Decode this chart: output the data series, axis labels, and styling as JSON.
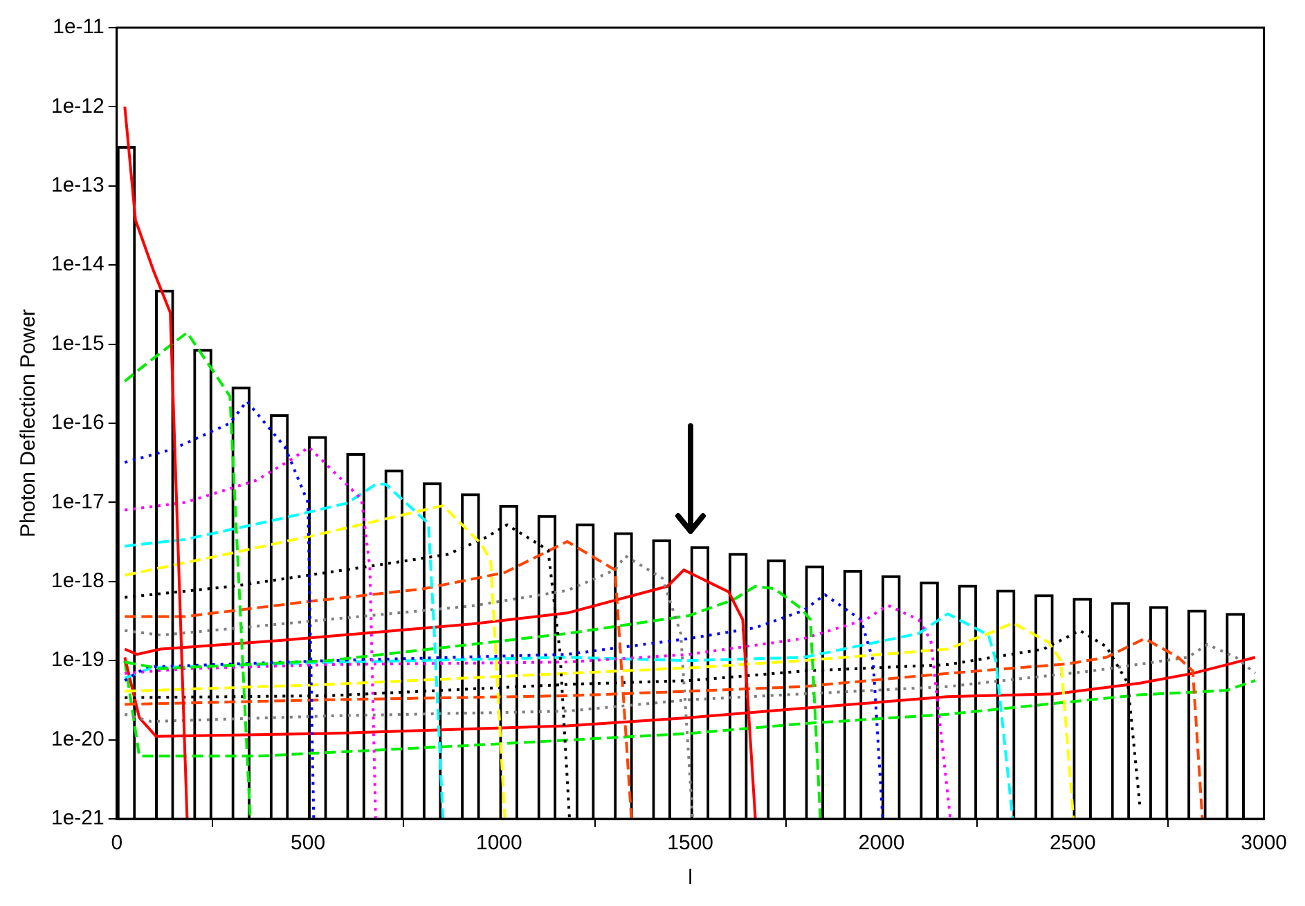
{
  "chart_data": {
    "type": "line",
    "ylabel": "Photon Deflection Power",
    "xlabel": "l",
    "log": "y",
    "grid": false,
    "legend": false,
    "marker": "none",
    "xlim": [
      0,
      3000
    ],
    "xticks": [
      0,
      500,
      1000,
      1500,
      2000,
      2500,
      3000
    ],
    "ylim": [
      1e-21,
      1e-11
    ],
    "yticks": [
      {
        "value": 1e-21,
        "label": "1e-21"
      },
      {
        "value": 1e-20,
        "label": "1e-20"
      },
      {
        "value": 1e-19,
        "label": "1e-19"
      },
      {
        "value": 1e-18,
        "label": "1e-18"
      },
      {
        "value": 1e-17,
        "label": "1e-17"
      },
      {
        "value": 1e-16,
        "label": "1e-16"
      },
      {
        "value": 1e-15,
        "label": "1e-15"
      },
      {
        "value": 1e-14,
        "label": "1e-14"
      },
      {
        "value": 1e-13,
        "label": "1e-13"
      },
      {
        "value": 1e-12,
        "label": "1e-12"
      },
      {
        "value": 1e-11,
        "label": "1e-11"
      }
    ],
    "series": [
      {
        "type": "bar",
        "color": "#000000",
        "x": [
          25,
          125,
          225,
          325,
          425,
          525,
          625,
          725,
          825,
          925,
          1025,
          1125,
          1225,
          1325,
          1425,
          1525,
          1625,
          1725,
          1825,
          1925,
          2025,
          2125,
          2225,
          2325,
          2425,
          2525,
          2625,
          2725,
          2825,
          2925
        ],
        "values": [
          3.2e-13,
          4.9e-15,
          8.7e-16,
          2.9e-16,
          1.3e-16,
          6.9e-17,
          4.2e-17,
          2.6e-17,
          1.8e-17,
          1.3e-17,
          9.3e-18,
          6.9e-18,
          5.4e-18,
          4.2e-18,
          3.4e-18,
          2.8e-18,
          2.3e-18,
          1.9e-18,
          1.6e-18,
          1.4e-18,
          1.2e-18,
          1e-18,
          9.1e-19,
          7.9e-19,
          6.9e-19,
          6.2e-19,
          5.5e-19,
          4.9e-19,
          4.4e-19,
          4e-19
        ]
      },
      {
        "color": "#ff0000",
        "line_style": "solid",
        "x": [
          21,
          49,
          96,
          140,
          184
        ],
        "values": [
          1e-12,
          3.7e-14,
          8.5e-15,
          2.5e-15,
          1e-21
        ]
      },
      {
        "color": "#00ee00",
        "line_style": "dashed",
        "x": [
          21,
          90,
          184,
          296,
          349
        ],
        "values": [
          3.4e-16,
          6.3e-16,
          1.4e-15,
          2.2e-16,
          1e-21
        ]
      },
      {
        "color": "#0000ff",
        "line_style": "dotted",
        "x": [
          21,
          146,
          296,
          340,
          440,
          500,
          515
        ],
        "values": [
          3.2e-17,
          4.7e-17,
          1e-16,
          1.9e-16,
          5e-17,
          1e-17,
          1e-21
        ]
      },
      {
        "color": "#ff00ff",
        "line_style": "dotted",
        "x": [
          21,
          180,
          365,
          465,
          502,
          640,
          662,
          677
        ],
        "values": [
          8e-18,
          1e-17,
          1.9e-17,
          3.7e-17,
          5e-17,
          1.1e-17,
          1.5e-18,
          1e-21
        ]
      },
      {
        "color": "#00ffff",
        "line_style": "dashed",
        "x": [
          21,
          178,
          428,
          603,
          678,
          703,
          815,
          830,
          853
        ],
        "values": [
          2.8e-18,
          3.4e-18,
          6.2e-18,
          9.8e-18,
          1.7e-17,
          1.7e-17,
          5.4e-18,
          2.5e-19,
          1e-21
        ]
      },
      {
        "color": "#ffff00",
        "line_style": "dashed",
        "x": [
          21,
          303,
          553,
          853,
          953,
          978,
          1015
        ],
        "values": [
          1.2e-18,
          2.3e-18,
          4.2e-18,
          9.1e-18,
          3e-18,
          1.8e-18,
          1e-21
        ]
      },
      {
        "color": "#000000",
        "line_style": "dotted",
        "x": [
          21,
          303,
          678,
          865,
          965,
          1021,
          1128,
          1159,
          1184
        ],
        "values": [
          6.3e-19,
          8.7e-19,
          1.6e-18,
          2.2e-18,
          3.6e-18,
          5.2e-18,
          2.5e-18,
          1.3e-19,
          1e-21
        ]
      },
      {
        "color": "#ff4500",
        "line_style": "dashed",
        "x": [
          21,
          178,
          490,
          803,
          1015,
          1178,
          1303,
          1346
        ],
        "values": [
          3.6e-19,
          3.6e-19,
          5.5e-19,
          8.1e-19,
          1.3e-18,
          3.2e-18,
          1.4e-18,
          1e-21
        ]
      },
      {
        "color": "#808080",
        "line_style": "dotted",
        "x": [
          21,
          115,
          428,
          928,
          1178,
          1303,
          1330,
          1427,
          1475,
          1506
        ],
        "values": [
          2.4e-19,
          2.1e-19,
          2.9e-19,
          4.9e-19,
          7.7e-19,
          1.4e-18,
          2.1e-18,
          1.1e-18,
          2.2e-19,
          1e-21
        ]
      },
      {
        "color": "#ff0000",
        "line_style": "solid",
        "x": [
          21,
          53,
          115,
          428,
          928,
          1178,
          1440,
          1483,
          1600,
          1637,
          1670
        ],
        "values": [
          1.4e-19,
          1.2e-19,
          1.4e-19,
          1.8e-19,
          2.9e-19,
          4e-19,
          8.7e-19,
          1.4e-18,
          7.4e-19,
          3.3e-19,
          1e-21
        ]
      },
      {
        "color": "#00ee00",
        "line_style": "dashed",
        "x": [
          21,
          115,
          553,
          1178,
          1496,
          1613,
          1670,
          1720,
          1789,
          1814,
          1840
        ],
        "values": [
          9.6e-20,
          7.9e-20,
          1e-19,
          2.2e-19,
          3.7e-19,
          5.9e-19,
          8.7e-19,
          8.1e-19,
          4.6e-19,
          3.3e-19,
          1e-21
        ]
      },
      {
        "color": "#0000ff",
        "line_style": "dotted",
        "x": [
          21,
          78,
          553,
          1178,
          1496,
          1670,
          1796,
          1852,
          1946,
          1978,
          2003
        ],
        "values": [
          5.6e-20,
          8.3e-20,
          1e-19,
          1.2e-19,
          1.9e-19,
          2.6e-19,
          4.3e-19,
          6.8e-19,
          3.3e-19,
          1e-19,
          1e-21
        ]
      },
      {
        "color": "#ff00ff",
        "line_style": "dotted",
        "x": [
          21,
          178,
          553,
          1178,
          1496,
          1796,
          1959,
          2016,
          2097,
          2129,
          2180
        ],
        "values": [
          6.9e-20,
          7.9e-20,
          8.9e-20,
          9.6e-20,
          1.2e-19,
          1.9e-19,
          3.3e-19,
          5e-19,
          3.3e-19,
          1.8e-19,
          1e-21
        ]
      },
      {
        "color": "#00ffff",
        "line_style": "dashed",
        "x": [
          21,
          90,
          553,
          1178,
          1496,
          1796,
          2097,
          2173,
          2280,
          2299,
          2343
        ],
        "values": [
          6e-20,
          8.1e-20,
          9.5e-20,
          1.1e-19,
          1e-19,
          1.1e-19,
          2.2e-19,
          3.9e-19,
          2.1e-19,
          1e-19,
          1e-21
        ]
      },
      {
        "color": "#ffff00",
        "line_style": "dashed",
        "x": [
          21,
          553,
          1178,
          1496,
          1796,
          2173,
          2299,
          2343,
          2437,
          2469,
          2502
        ],
        "values": [
          4.1e-20,
          5e-20,
          6.9e-20,
          8.1e-20,
          1e-19,
          1.4e-19,
          2.4e-19,
          3e-19,
          1.7e-19,
          1e-19,
          1e-21
        ]
      },
      {
        "color": "#000000",
        "line_style": "dotted",
        "x": [
          21,
          553,
          1178,
          1496,
          1796,
          2173,
          2424,
          2519,
          2588,
          2644,
          2676
        ],
        "values": [
          3.4e-20,
          3.6e-20,
          5e-20,
          5.6e-20,
          7.4e-20,
          8.9e-20,
          1.4e-19,
          2.4e-19,
          1.5e-19,
          5.2e-20,
          1.4e-21
        ]
      },
      {
        "color": "#ff4500",
        "line_style": "dashed",
        "x": [
          21,
          553,
          1178,
          1496,
          1796,
          2173,
          2487,
          2588,
          2688,
          2776,
          2814,
          2839
        ],
        "values": [
          2.8e-20,
          3.2e-20,
          3.6e-20,
          4.1e-20,
          4.7e-20,
          6.9e-20,
          9.1e-20,
          1.1e-19,
          1.9e-19,
          1.1e-19,
          7.4e-20,
          1e-21
        ]
      },
      {
        "color": "#808080",
        "line_style": "dotted",
        "x": [
          21,
          90,
          553,
          1178,
          1496,
          1796,
          2173,
          2550,
          2801,
          2852,
          2927,
          2977
        ],
        "values": [
          2.1e-20,
          1.7e-20,
          2e-20,
          2.3e-20,
          3.2e-20,
          3.8e-20,
          4.7e-20,
          7.4e-20,
          1.1e-19,
          1.6e-19,
          1.1e-19,
          6.9e-20
        ]
      },
      {
        "color": "#ff0000",
        "line_style": "solid",
        "x": [
          21,
          59,
          103,
          553,
          1178,
          1496,
          1796,
          2173,
          2456,
          2676,
          2814,
          2977
        ],
        "values": [
          1.1e-19,
          1.9e-20,
          1.1e-20,
          1.2e-20,
          1.5e-20,
          1.9e-20,
          2.5e-20,
          3.5e-20,
          3.8e-20,
          5.2e-20,
          6.9e-20,
          1.1e-19
        ]
      },
      {
        "color": "#00ee00",
        "line_style": "dashed",
        "x": [
          21,
          59,
          365,
          928,
          1496,
          1796,
          2173,
          2676,
          2902,
          2977
        ],
        "values": [
          1e-19,
          6.2e-21,
          6.2e-21,
          8.5e-21,
          1.2e-20,
          1.6e-20,
          2.1e-20,
          3.7e-20,
          4.2e-20,
          5.6e-20
        ]
      }
    ]
  }
}
